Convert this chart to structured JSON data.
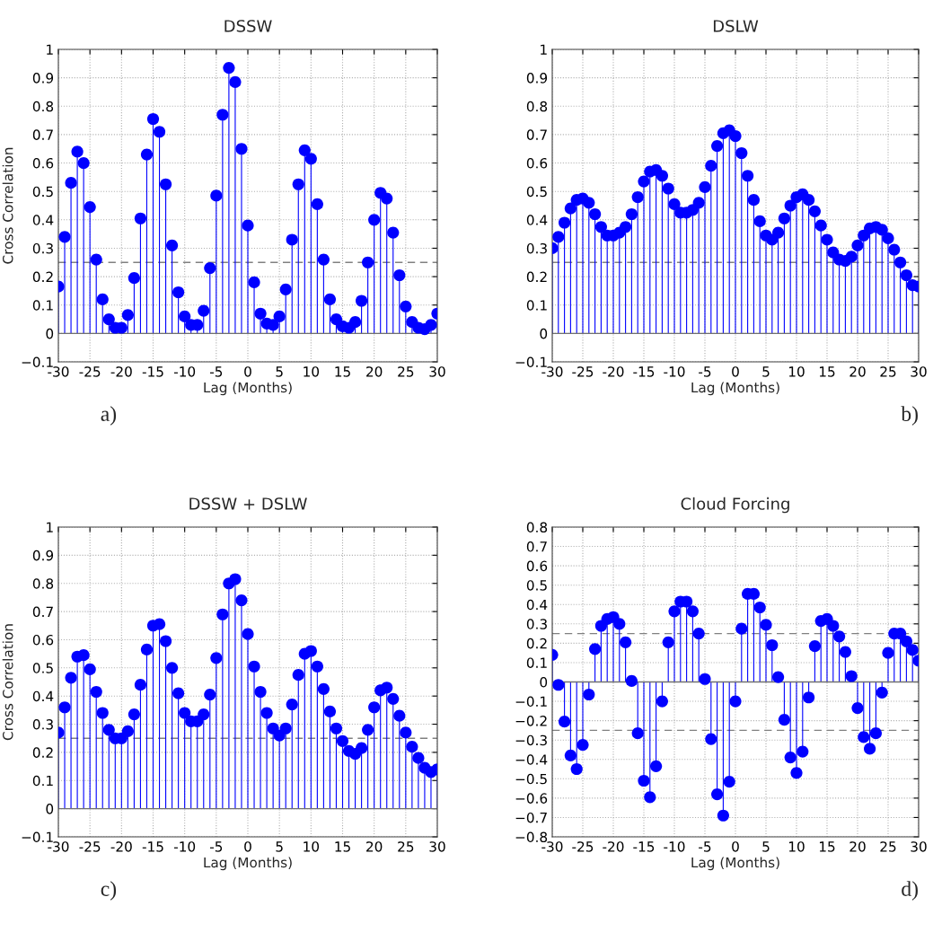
{
  "chart_data": [
    {
      "type": "lollipop",
      "title": "DSSW",
      "xlabel": "Lag (Months)",
      "ylabel": "Cross Correlation",
      "color": "#0000ff",
      "marker": "circle",
      "grid": true,
      "x": [
        -30,
        -29,
        -28,
        -27,
        -26,
        -25,
        -24,
        -23,
        -22,
        -21,
        -20,
        -19,
        -18,
        -17,
        -16,
        -15,
        -14,
        -13,
        -12,
        -11,
        -10,
        -9,
        -8,
        -7,
        -6,
        -5,
        -4,
        -3,
        -2,
        -1,
        0,
        1,
        2,
        3,
        4,
        5,
        6,
        7,
        8,
        9,
        10,
        11,
        12,
        13,
        14,
        15,
        16,
        17,
        18,
        19,
        20,
        21,
        22,
        23,
        24,
        25,
        26,
        27,
        28,
        29,
        30
      ],
      "values": [
        0.165,
        0.34,
        0.53,
        0.64,
        0.6,
        0.445,
        0.26,
        0.12,
        0.05,
        0.02,
        0.02,
        0.065,
        0.195,
        0.405,
        0.63,
        0.755,
        0.71,
        0.525,
        0.31,
        0.145,
        0.06,
        0.03,
        0.03,
        0.08,
        0.23,
        0.485,
        0.77,
        0.935,
        0.885,
        0.65,
        0.38,
        0.18,
        0.07,
        0.035,
        0.03,
        0.06,
        0.155,
        0.33,
        0.525,
        0.645,
        0.615,
        0.455,
        0.26,
        0.12,
        0.05,
        0.025,
        0.02,
        0.04,
        0.115,
        0.25,
        0.4,
        0.495,
        0.475,
        0.355,
        0.205,
        0.095,
        0.04,
        0.02,
        0.015,
        0.03,
        0.07
      ],
      "xlim": [
        -30,
        30
      ],
      "xticks": [
        -30,
        -25,
        -20,
        -15,
        -10,
        -5,
        0,
        5,
        10,
        15,
        20,
        25,
        30
      ],
      "ylim": [
        -0.1,
        1
      ],
      "yticks": [
        -0.1,
        0,
        0.1,
        0.2,
        0.3,
        0.4,
        0.5,
        0.6,
        0.7,
        0.8,
        0.9,
        1
      ],
      "ref_lines": [
        {
          "axis": "y",
          "value": 0.25,
          "color": "#808080",
          "line_style": "dashed"
        }
      ],
      "annotations": [
        "a)"
      ]
    },
    {
      "type": "lollipop",
      "title": "DSLW",
      "xlabel": "Lag (Months)",
      "color": "#0000ff",
      "marker": "circle",
      "grid": true,
      "x": [
        -30,
        -29,
        -28,
        -27,
        -26,
        -25,
        -24,
        -23,
        -22,
        -21,
        -20,
        -19,
        -18,
        -17,
        -16,
        -15,
        -14,
        -13,
        -12,
        -11,
        -10,
        -9,
        -8,
        -7,
        -6,
        -5,
        -4,
        -3,
        -2,
        -1,
        0,
        1,
        2,
        3,
        4,
        5,
        6,
        7,
        8,
        9,
        10,
        11,
        12,
        13,
        14,
        15,
        16,
        17,
        18,
        19,
        20,
        21,
        22,
        23,
        24,
        25,
        26,
        27,
        28,
        29,
        30
      ],
      "values": [
        0.3,
        0.34,
        0.39,
        0.44,
        0.47,
        0.475,
        0.46,
        0.42,
        0.375,
        0.345,
        0.345,
        0.355,
        0.375,
        0.42,
        0.48,
        0.535,
        0.57,
        0.575,
        0.555,
        0.51,
        0.455,
        0.425,
        0.425,
        0.435,
        0.46,
        0.515,
        0.59,
        0.66,
        0.705,
        0.715,
        0.695,
        0.635,
        0.555,
        0.47,
        0.395,
        0.345,
        0.33,
        0.355,
        0.405,
        0.45,
        0.48,
        0.49,
        0.47,
        0.43,
        0.38,
        0.33,
        0.285,
        0.26,
        0.255,
        0.27,
        0.31,
        0.345,
        0.37,
        0.375,
        0.365,
        0.335,
        0.295,
        0.25,
        0.205,
        0.17,
        0.165
      ],
      "xlim": [
        -30,
        30
      ],
      "xticks": [
        -30,
        -25,
        -20,
        -15,
        -10,
        -5,
        0,
        5,
        10,
        15,
        20,
        25,
        30
      ],
      "ylim": [
        -0.1,
        1
      ],
      "yticks": [
        -0.1,
        0,
        0.1,
        0.2,
        0.3,
        0.4,
        0.5,
        0.6,
        0.7,
        0.8,
        0.9,
        1
      ],
      "ref_lines": [
        {
          "axis": "y",
          "value": 0.25,
          "color": "#808080",
          "line_style": "dashed"
        }
      ],
      "annotations": [
        "b)"
      ]
    },
    {
      "type": "lollipop",
      "title": "DSSW + DSLW",
      "xlabel": "Lag (Months)",
      "ylabel": "Cross Correlation",
      "color": "#0000ff",
      "marker": "circle",
      "grid": true,
      "x": [
        -30,
        -29,
        -28,
        -27,
        -26,
        -25,
        -24,
        -23,
        -22,
        -21,
        -20,
        -19,
        -18,
        -17,
        -16,
        -15,
        -14,
        -13,
        -12,
        -11,
        -10,
        -9,
        -8,
        -7,
        -6,
        -5,
        -4,
        -3,
        -2,
        -1,
        0,
        1,
        2,
        3,
        4,
        5,
        6,
        7,
        8,
        9,
        10,
        11,
        12,
        13,
        14,
        15,
        16,
        17,
        18,
        19,
        20,
        21,
        22,
        23,
        24,
        25,
        26,
        27,
        28,
        29,
        30
      ],
      "values": [
        0.27,
        0.36,
        0.465,
        0.54,
        0.545,
        0.495,
        0.415,
        0.34,
        0.28,
        0.25,
        0.25,
        0.275,
        0.335,
        0.44,
        0.565,
        0.65,
        0.655,
        0.595,
        0.5,
        0.41,
        0.34,
        0.31,
        0.31,
        0.335,
        0.405,
        0.535,
        0.69,
        0.8,
        0.815,
        0.74,
        0.62,
        0.505,
        0.415,
        0.34,
        0.285,
        0.26,
        0.285,
        0.37,
        0.475,
        0.55,
        0.56,
        0.505,
        0.425,
        0.345,
        0.285,
        0.24,
        0.205,
        0.195,
        0.215,
        0.28,
        0.36,
        0.42,
        0.43,
        0.39,
        0.33,
        0.27,
        0.22,
        0.18,
        0.145,
        0.13,
        0.14
      ],
      "xlim": [
        -30,
        30
      ],
      "xticks": [
        -30,
        -25,
        -20,
        -15,
        -10,
        -5,
        0,
        5,
        10,
        15,
        20,
        25,
        30
      ],
      "ylim": [
        -0.1,
        1
      ],
      "yticks": [
        -0.1,
        0,
        0.1,
        0.2,
        0.3,
        0.4,
        0.5,
        0.6,
        0.7,
        0.8,
        0.9,
        1
      ],
      "ref_lines": [
        {
          "axis": "y",
          "value": 0.25,
          "color": "#808080",
          "line_style": "dashed"
        }
      ],
      "annotations": [
        "c)"
      ]
    },
    {
      "type": "lollipop",
      "title": "Cloud Forcing",
      "xlabel": "Lag (Months)",
      "color": "#0000ff",
      "marker": "circle",
      "grid": true,
      "x": [
        -30,
        -29,
        -28,
        -27,
        -26,
        -25,
        -24,
        -23,
        -22,
        -21,
        -20,
        -19,
        -18,
        -17,
        -16,
        -15,
        -14,
        -13,
        -12,
        -11,
        -10,
        -9,
        -8,
        -7,
        -6,
        -5,
        -4,
        -3,
        -2,
        -1,
        0,
        1,
        2,
        3,
        4,
        5,
        6,
        7,
        8,
        9,
        10,
        11,
        12,
        13,
        14,
        15,
        16,
        17,
        18,
        19,
        20,
        21,
        22,
        23,
        24,
        25,
        26,
        27,
        28,
        29,
        30
      ],
      "values": [
        0.14,
        -0.015,
        -0.205,
        -0.38,
        -0.45,
        -0.325,
        -0.065,
        0.17,
        0.29,
        0.325,
        0.335,
        0.3,
        0.205,
        0.005,
        -0.265,
        -0.51,
        -0.595,
        -0.435,
        -0.1,
        0.205,
        0.365,
        0.415,
        0.415,
        0.365,
        0.25,
        0.015,
        -0.295,
        -0.58,
        -0.69,
        -0.515,
        -0.1,
        0.275,
        0.455,
        0.455,
        0.385,
        0.295,
        0.19,
        0.025,
        -0.195,
        -0.39,
        -0.47,
        -0.36,
        -0.08,
        0.185,
        0.315,
        0.325,
        0.29,
        0.235,
        0.155,
        0.03,
        -0.135,
        -0.285,
        -0.345,
        -0.265,
        -0.055,
        0.15,
        0.25,
        0.25,
        0.21,
        0.165,
        0.11
      ],
      "xlim": [
        -30,
        30
      ],
      "xticks": [
        -30,
        -25,
        -20,
        -15,
        -10,
        -5,
        0,
        5,
        10,
        15,
        20,
        25,
        30
      ],
      "ylim": [
        -0.8,
        0.8
      ],
      "yticks": [
        -0.8,
        -0.7,
        -0.6,
        -0.5,
        -0.4,
        -0.3,
        -0.2,
        -0.1,
        0,
        0.1,
        0.2,
        0.3,
        0.4,
        0.5,
        0.6,
        0.7,
        0.8
      ],
      "ref_lines": [
        {
          "axis": "y",
          "value": 0.25,
          "color": "#808080",
          "line_style": "dashed"
        },
        {
          "axis": "y",
          "value": -0.25,
          "color": "#808080",
          "line_style": "dashed"
        }
      ],
      "annotations": [
        "d)"
      ]
    }
  ]
}
